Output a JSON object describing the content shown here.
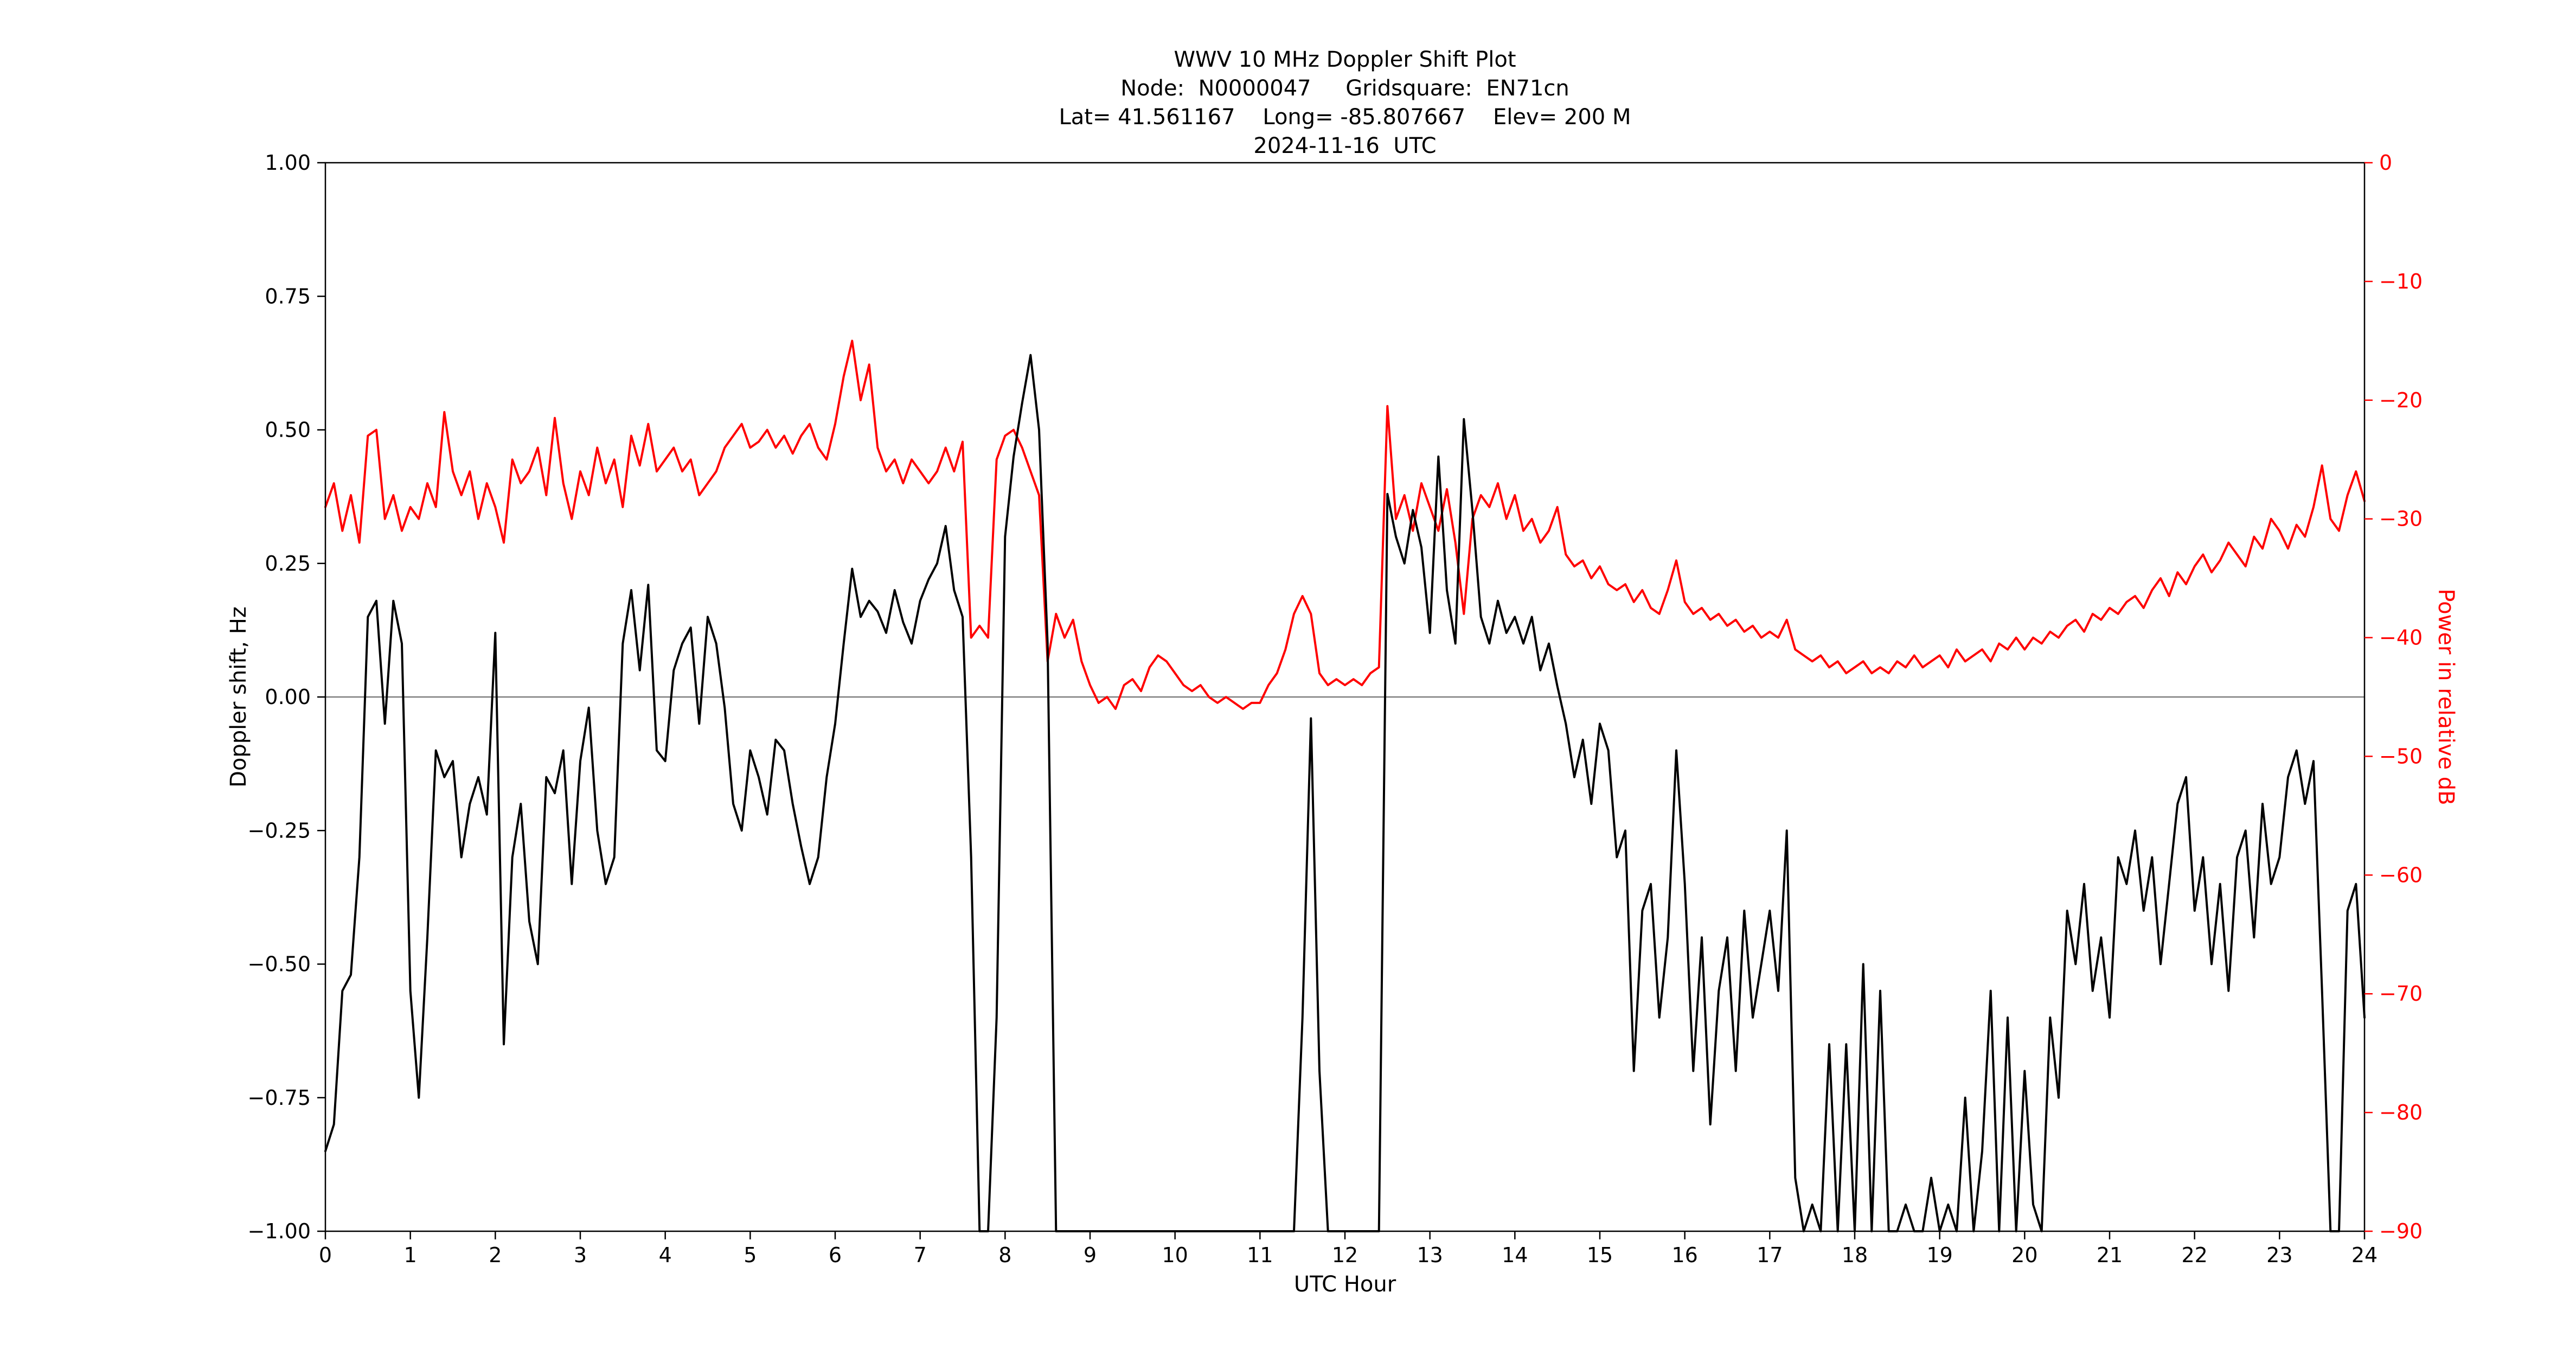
{
  "figure": {
    "title": "WWV 10 MHz Doppler Shift Plot",
    "subtitle_node": "Node:  N0000047     Gridsquare:  EN71cn",
    "subtitle_location": "Lat= 41.561167    Long= -85.807667    Elev= 200 M",
    "subtitle_date": "2024-11-16  UTC"
  },
  "axes": {
    "x": {
      "label": "UTC Hour",
      "min": 0,
      "max": 24,
      "tick_values": [
        0,
        1,
        2,
        3,
        4,
        5,
        6,
        7,
        8,
        9,
        10,
        11,
        12,
        13,
        14,
        15,
        16,
        17,
        18,
        19,
        20,
        21,
        22,
        23,
        24
      ],
      "tick_labels": [
        "0",
        "1",
        "2",
        "3",
        "4",
        "5",
        "6",
        "7",
        "8",
        "9",
        "10",
        "11",
        "12",
        "13",
        "14",
        "15",
        "16",
        "17",
        "18",
        "19",
        "20",
        "21",
        "22",
        "23",
        "24"
      ]
    },
    "y_left": {
      "label": "Doppler shift, Hz",
      "min": -1.0,
      "max": 1.0,
      "color": "#000000",
      "tick_values": [
        1.0,
        0.75,
        0.5,
        0.25,
        0.0,
        -0.25,
        -0.5,
        -0.75,
        -1.0
      ],
      "tick_labels": [
        "1.00",
        "0.75",
        "0.50",
        "0.25",
        "0.00",
        "−0.25",
        "−0.50",
        "−0.75",
        "−1.00"
      ]
    },
    "y_right": {
      "label": "Power in relative dB",
      "min": -90,
      "max": 0,
      "color": "#ff0000",
      "tick_values": [
        0,
        -10,
        -20,
        -30,
        -40,
        -50,
        -60,
        -70,
        -80,
        -90
      ],
      "tick_labels": [
        "0",
        "−10",
        "−20",
        "−30",
        "−40",
        "−50",
        "−60",
        "−70",
        "−80",
        "−90"
      ]
    }
  },
  "chart_data": {
    "type": "line",
    "title": "WWV 10 MHz Doppler Shift Plot",
    "xlabel": "UTC Hour",
    "ylabel_left": "Doppler shift, Hz",
    "ylabel_right": "Power in relative dB",
    "xlim": [
      0,
      24
    ],
    "ylim_left": [
      -1.0,
      1.0
    ],
    "ylim_right": [
      -90,
      0
    ],
    "grid": false,
    "zero_line": {
      "y": 0,
      "color": "#7f7f7f"
    },
    "x_start": 0,
    "x_step": 0.1,
    "series": [
      {
        "name": "Doppler shift, Hz",
        "axis": "left",
        "color": "#000000",
        "values": [
          -0.85,
          -0.8,
          -0.55,
          -0.52,
          -0.3,
          0.15,
          0.18,
          -0.05,
          0.18,
          0.1,
          -0.55,
          -0.75,
          -0.45,
          -0.1,
          -0.15,
          -0.12,
          -0.3,
          -0.2,
          -0.15,
          -0.22,
          0.12,
          -0.65,
          -0.3,
          -0.2,
          -0.42,
          -0.5,
          -0.15,
          -0.18,
          -0.1,
          -0.35,
          -0.12,
          -0.02,
          -0.25,
          -0.35,
          -0.3,
          0.1,
          0.2,
          0.05,
          0.21,
          -0.1,
          -0.12,
          0.05,
          0.1,
          0.13,
          -0.05,
          0.15,
          0.1,
          -0.02,
          -0.2,
          -0.25,
          -0.1,
          -0.15,
          -0.22,
          -0.08,
          -0.1,
          -0.2,
          -0.28,
          -0.35,
          -0.3,
          -0.15,
          -0.05,
          0.1,
          0.24,
          0.15,
          0.18,
          0.16,
          0.12,
          0.2,
          0.14,
          0.1,
          0.18,
          0.22,
          0.25,
          0.32,
          0.2,
          0.15,
          -0.3,
          -1.0,
          -1.0,
          -0.6,
          0.3,
          0.45,
          0.55,
          0.64,
          0.5,
          0.1,
          -1.0,
          -1.0,
          -1.0,
          -1.0,
          -1.0,
          -1.0,
          -1.0,
          -1.0,
          -1.0,
          -1.0,
          -1.0,
          -1.0,
          -1.0,
          -1.0,
          -1.0,
          -1.0,
          -1.0,
          -1.0,
          -1.0,
          -1.0,
          -1.0,
          -1.0,
          -1.0,
          -1.0,
          -1.0,
          -1.0,
          -1.0,
          -1.0,
          -1.0,
          -0.6,
          -0.04,
          -0.7,
          -1.0,
          -1.0,
          -1.0,
          -1.0,
          -1.0,
          -1.0,
          -1.0,
          0.38,
          0.3,
          0.25,
          0.35,
          0.28,
          0.12,
          0.45,
          0.2,
          0.1,
          0.52,
          0.35,
          0.15,
          0.1,
          0.18,
          0.12,
          0.15,
          0.1,
          0.15,
          0.05,
          0.1,
          0.02,
          -0.05,
          -0.15,
          -0.08,
          -0.2,
          -0.05,
          -0.1,
          -0.3,
          -0.25,
          -0.7,
          -0.4,
          -0.35,
          -0.6,
          -0.45,
          -0.1,
          -0.35,
          -0.7,
          -0.45,
          -0.8,
          -0.55,
          -0.45,
          -0.7,
          -0.4,
          -0.6,
          -0.5,
          -0.4,
          -0.55,
          -0.25,
          -0.9,
          -1.0,
          -0.95,
          -1.0,
          -0.65,
          -1.0,
          -0.65,
          -1.0,
          -0.5,
          -1.0,
          -0.55,
          -1.0,
          -1.0,
          -0.95,
          -1.0,
          -1.0,
          -0.9,
          -1.0,
          -0.95,
          -1.0,
          -0.75,
          -1.0,
          -0.85,
          -0.55,
          -1.0,
          -0.6,
          -1.0,
          -0.7,
          -0.95,
          -1.0,
          -0.6,
          -0.75,
          -0.4,
          -0.5,
          -0.35,
          -0.55,
          -0.45,
          -0.6,
          -0.3,
          -0.35,
          -0.25,
          -0.4,
          -0.3,
          -0.5,
          -0.35,
          -0.2,
          -0.15,
          -0.4,
          -0.3,
          -0.5,
          -0.35,
          -0.55,
          -0.3,
          -0.25,
          -0.45,
          -0.2,
          -0.35,
          -0.3,
          -0.15,
          -0.1,
          -0.2,
          -0.12,
          -0.55,
          -1.0,
          -1.0,
          -0.4,
          -0.35,
          -0.6
        ]
      },
      {
        "name": "Power in relative dB",
        "axis": "right",
        "color": "#ff0000",
        "values": [
          -29,
          -27,
          -31,
          -28,
          -32,
          -23,
          -22.5,
          -30,
          -28,
          -31,
          -29,
          -30,
          -27,
          -29,
          -21,
          -26,
          -28,
          -26,
          -30,
          -27,
          -29,
          -32,
          -25,
          -27,
          -26,
          -24,
          -28,
          -21.5,
          -27,
          -30,
          -26,
          -28,
          -24,
          -27,
          -25,
          -29,
          -23,
          -25.5,
          -22,
          -26,
          -25,
          -24,
          -26,
          -25,
          -28,
          -27,
          -26,
          -24,
          -23,
          -22,
          -24,
          -23.5,
          -22.5,
          -24,
          -23,
          -24.5,
          -23,
          -22,
          -24,
          -25,
          -22,
          -18,
          -15,
          -20,
          -17,
          -24,
          -26,
          -25,
          -27,
          -25,
          -26,
          -27,
          -26,
          -24,
          -26,
          -23.5,
          -40,
          -39,
          -40,
          -25,
          -23,
          -22.5,
          -24,
          -26,
          -28,
          -42,
          -38,
          -40,
          -38.5,
          -42,
          -44,
          -45.5,
          -45,
          -46,
          -44,
          -43.5,
          -44.5,
          -42.5,
          -41.5,
          -42,
          -43,
          -44,
          -44.5,
          -44,
          -45,
          -45.5,
          -45,
          -45.5,
          -46,
          -45.5,
          -45.5,
          -44,
          -43,
          -41,
          -38,
          -36.5,
          -38,
          -43,
          -44,
          -43.5,
          -44,
          -43.5,
          -44,
          -43,
          -42.5,
          -20.5,
          -30,
          -28,
          -31,
          -27,
          -29,
          -31,
          -27.5,
          -32,
          -38,
          -30,
          -28,
          -29,
          -27,
          -30,
          -28,
          -31,
          -30,
          -32,
          -31,
          -29,
          -33,
          -34,
          -33.5,
          -35,
          -34,
          -35.5,
          -36,
          -35.5,
          -37,
          -36,
          -37.5,
          -38,
          -36,
          -33.5,
          -37,
          -38,
          -37.5,
          -38.5,
          -38,
          -39,
          -38.5,
          -39.5,
          -39,
          -40,
          -39.5,
          -40,
          -38.5,
          -41,
          -41.5,
          -42,
          -41.5,
          -42.5,
          -42,
          -43,
          -42.5,
          -42,
          -43,
          -42.5,
          -43,
          -42,
          -42.5,
          -41.5,
          -42.5,
          -42,
          -41.5,
          -42.5,
          -41,
          -42,
          -41.5,
          -41,
          -42,
          -40.5,
          -41,
          -40,
          -41,
          -40,
          -40.5,
          -39.5,
          -40,
          -39,
          -38.5,
          -39.5,
          -38,
          -38.5,
          -37.5,
          -38,
          -37,
          -36.5,
          -37.5,
          -36,
          -35,
          -36.5,
          -34.5,
          -35.5,
          -34,
          -33,
          -34.5,
          -33.5,
          -32,
          -33,
          -34,
          -31.5,
          -32.5,
          -30,
          -31,
          -32.5,
          -30.5,
          -31.5,
          -29,
          -25.5,
          -30,
          -31,
          -28,
          -26,
          -28.5
        ]
      }
    ]
  }
}
